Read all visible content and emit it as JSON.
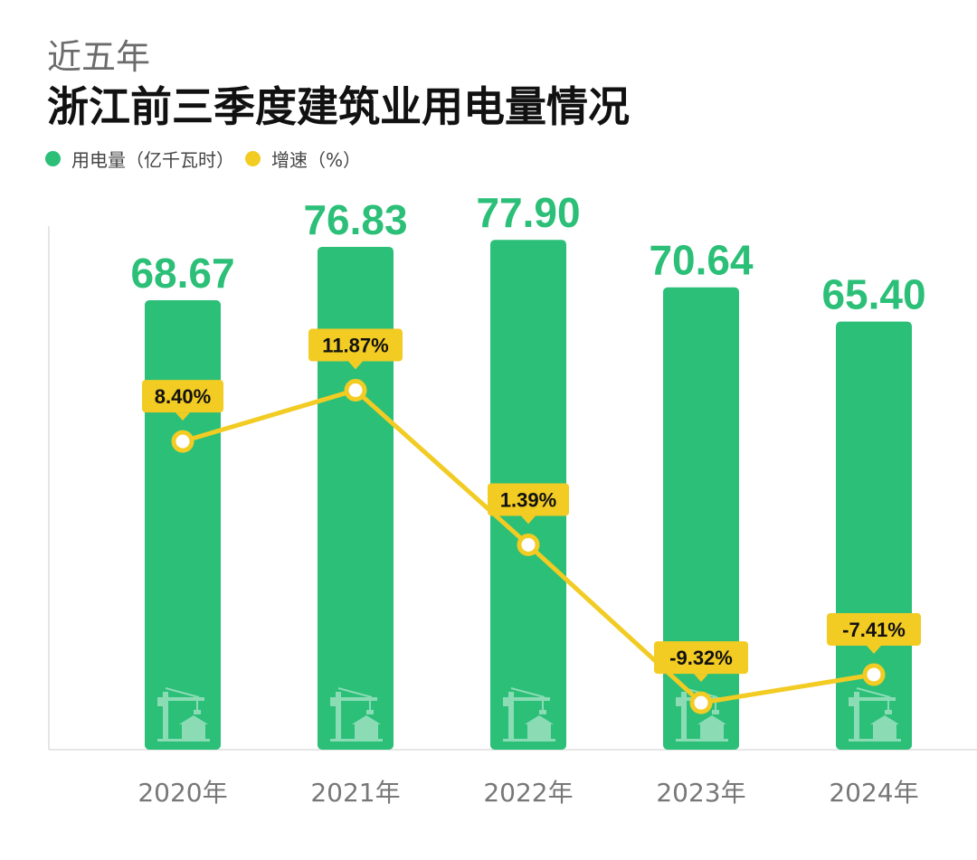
{
  "header": {
    "subtitle": "近五年",
    "title": "浙江前三季度建筑业用电量情况"
  },
  "legend": [
    {
      "label": "用电量（亿千瓦时）",
      "color": "#2bbf78"
    },
    {
      "label": "增速（%）",
      "color": "#f2cb23"
    }
  ],
  "colors": {
    "bar": "#2bbf78",
    "line": "#f2cb23",
    "label_text": "#111111",
    "axis_text": "#777777",
    "axis": "#dddddd"
  },
  "chart_data": {
    "type": "bar",
    "title": "浙江前三季度建筑业用电量情况",
    "categories": [
      "2020年",
      "2021年",
      "2022年",
      "2023年",
      "2024年"
    ],
    "series": [
      {
        "name": "用电量（亿千瓦时）",
        "type": "bar",
        "values": [
          68.67,
          76.83,
          77.9,
          70.64,
          65.4
        ],
        "labels": [
          "68.67",
          "76.83",
          "77.90",
          "70.64",
          "65.40"
        ]
      },
      {
        "name": "增速（%）",
        "type": "line",
        "values": [
          8.4,
          11.87,
          1.39,
          -9.32,
          -7.41
        ],
        "labels": [
          "8.40%",
          "11.87%",
          "1.39%",
          "-9.32%",
          "-7.41%"
        ]
      }
    ],
    "bar_ylim": [
      0,
      80
    ],
    "line_ylim": [
      -12.5,
      23
    ],
    "xlabel": "",
    "ylabel": ""
  }
}
